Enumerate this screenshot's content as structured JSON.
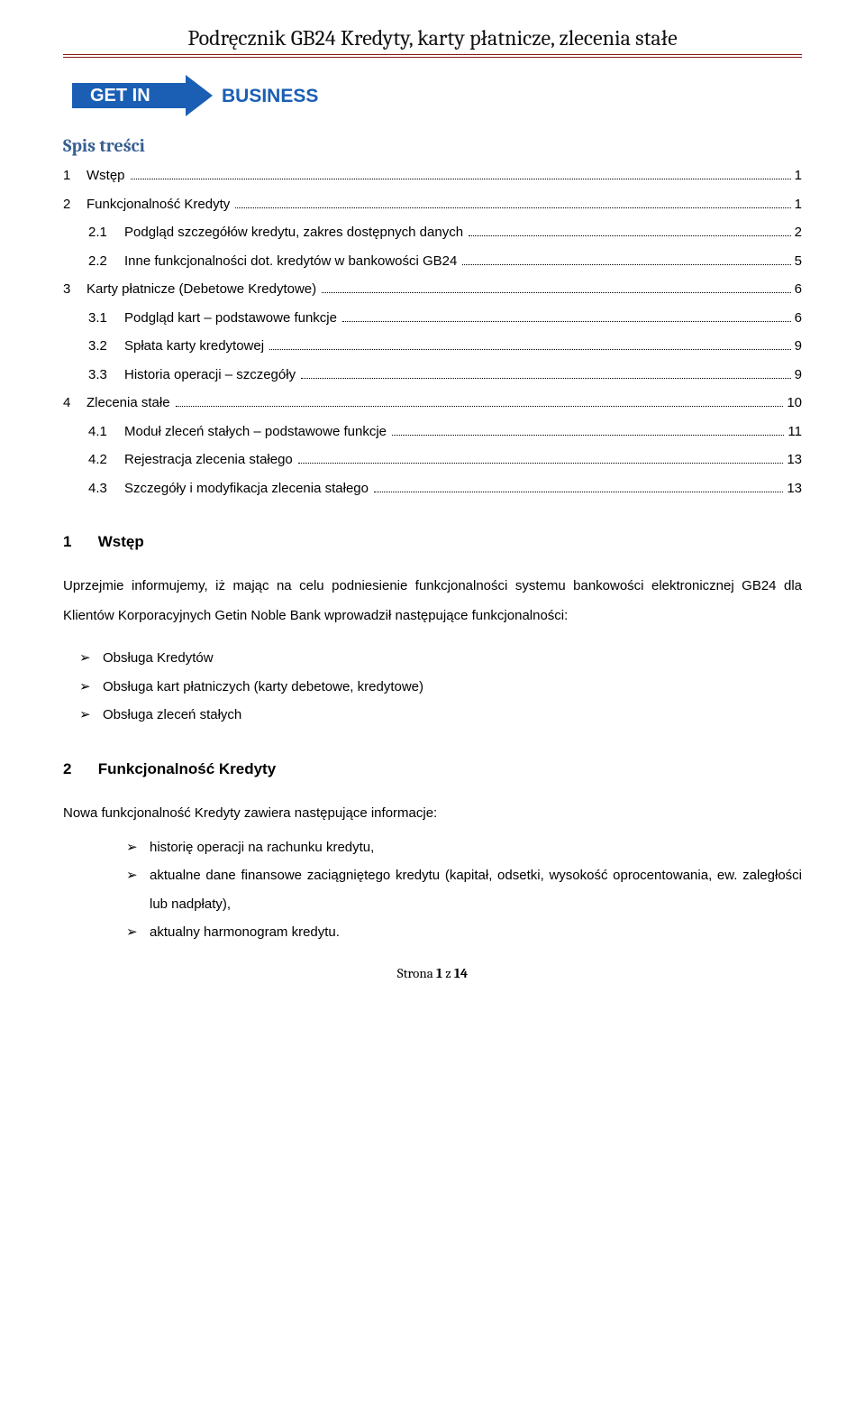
{
  "header": {
    "title": "Podręcznik GB24 Kredyty, karty płatnicze, zlecenia stałe"
  },
  "logo": {
    "text_left": "GET IN",
    "text_right": "BUSINESS",
    "fill": "#1a5fb4",
    "text_color": "#ffffff",
    "right_text_color": "#1a5fb4"
  },
  "toc": {
    "heading": "Spis treści",
    "items": [
      {
        "num": "1",
        "text": "Wstęp",
        "page": "1",
        "level": 1
      },
      {
        "num": "2",
        "text": "Funkcjonalność Kredyty",
        "page": "1",
        "level": 1
      },
      {
        "num": "2.1",
        "text": "Podgląd szczegółów kredytu, zakres dostępnych danych",
        "page": "2",
        "level": 2
      },
      {
        "num": "2.2",
        "text": "Inne funkcjonalności dot. kredytów w bankowości GB24",
        "page": "5",
        "level": 2
      },
      {
        "num": "3",
        "text": "Karty płatnicze (Debetowe Kredytowe)",
        "page": "6",
        "level": 1
      },
      {
        "num": "3.1",
        "text": "Podgląd kart – podstawowe funkcje",
        "page": "6",
        "level": 2
      },
      {
        "num": "3.2",
        "text": "Spłata karty kredytowej",
        "page": "9",
        "level": 2
      },
      {
        "num": "3.3",
        "text": "Historia operacji – szczegóły",
        "page": "9",
        "level": 2
      },
      {
        "num": "4",
        "text": "Zlecenia stałe",
        "page": "10",
        "level": 1
      },
      {
        "num": "4.1",
        "text": "Moduł zleceń stałych – podstawowe funkcje",
        "page": "11",
        "level": 2
      },
      {
        "num": "4.2",
        "text": "Rejestracja zlecenia stałego",
        "page": "13",
        "level": 2
      },
      {
        "num": "4.3",
        "text": "Szczegóły i modyfikacja zlecenia stałego",
        "page": "13",
        "level": 2
      }
    ]
  },
  "section1": {
    "num": "1",
    "title": "Wstęp",
    "paragraph": "Uprzejmie informujemy, iż mając na celu podniesienie funkcjonalności systemu bankowości elektronicznej GB24 dla Klientów Korporacyjnych Getin Noble Bank wprowadził następujące funkcjonalności:",
    "bullets": [
      "Obsługa Kredytów",
      "Obsługa kart płatniczych (karty debetowe, kredytowe)",
      "Obsługa zleceń stałych"
    ]
  },
  "section2": {
    "num": "2",
    "title": "Funkcjonalność Kredyty",
    "paragraph": "Nowa funkcjonalność Kredyty zawiera następujące informacje:",
    "bullets": [
      "historię operacji na rachunku kredytu,",
      "aktualne dane finansowe zaciągniętego kredytu (kapitał, odsetki, wysokość oprocentowania, ew. zaległości lub nadpłaty),",
      "aktualny harmonogram kredytu."
    ]
  },
  "footer": {
    "prefix": "Strona ",
    "page": "1",
    "sep": " z ",
    "total": "14"
  }
}
